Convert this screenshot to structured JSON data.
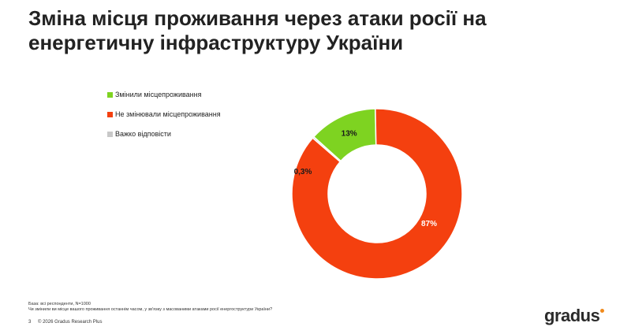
{
  "title": "Зміна місця проживання через атаки росії на енергетичну інфраструктуру України",
  "footnote": {
    "base": "База: всі респонденти, N=1000",
    "question": "Чи змінили ви місце вашого проживання останнім часом, у зв'язку з масованими атаками росії енергоструктури України?"
  },
  "footer": {
    "page_number": "3",
    "copyright": "© 2026 Gradus Research Plus"
  },
  "logo": {
    "text": "gradus",
    "dot_color": "#f08a1c"
  },
  "chart_data": {
    "type": "pie",
    "donut": true,
    "title": "",
    "slices": [
      {
        "name": "Змінили місцепроживання",
        "value": 13,
        "label": "13%",
        "color": "#7ed321"
      },
      {
        "name": "Не змінювали місцепроживання",
        "value": 86.7,
        "label": "87%",
        "color": "#f4400f"
      },
      {
        "name": "Важко відповісти",
        "value": 0.3,
        "label": "0,3%",
        "color": "#c8c8c8"
      }
    ],
    "legend": "left"
  }
}
